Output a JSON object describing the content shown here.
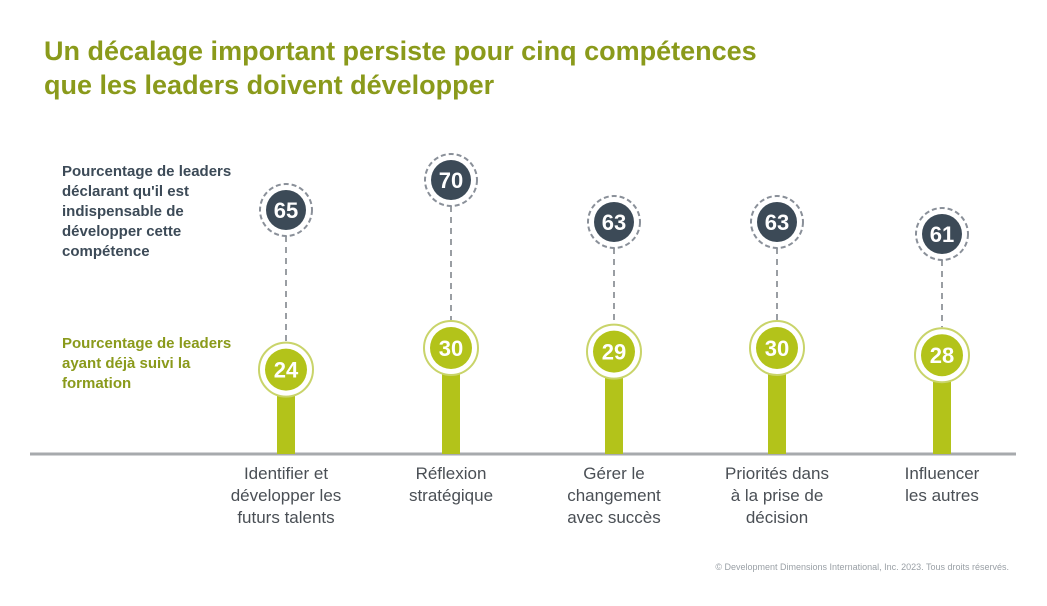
{
  "title": {
    "line1": "Un décalage important persiste pour cinq compétences",
    "line2": "que les leaders doivent développer"
  },
  "colors": {
    "title": "#8a9a1b",
    "dark_marker": "#3c4a57",
    "green": "#b3c31a",
    "axis": "#a7aaad"
  },
  "chart_data": {
    "type": "dot-plot",
    "categories": [
      "Identifier et développer les futurs talents",
      "Réflexion stratégique",
      "Gérer le changement avec succès",
      "Priorités dans à la prise de décision",
      "Influencer les autres"
    ],
    "series": [
      {
        "name": "Pourcentage de leaders déclarant qu'il est indispensable de développer cette compétence",
        "values": [
          65,
          70,
          63,
          63,
          61
        ]
      },
      {
        "name": "Pourcentage de leaders ayant déjà suivi la formation",
        "values": [
          24,
          30,
          29,
          30,
          28
        ]
      }
    ]
  },
  "category_lines": [
    [
      "Identifier et",
      "développer les",
      "futurs talents"
    ],
    [
      "Réflexion",
      "stratégique"
    ],
    [
      "Gérer le",
      "changement",
      "avec succès"
    ],
    [
      "Priorités dans",
      "à la prise de",
      "décision"
    ],
    [
      "Influencer",
      "les autres"
    ]
  ],
  "copyright": "© Development Dimensions International, Inc. 2023. Tous droits réservés."
}
